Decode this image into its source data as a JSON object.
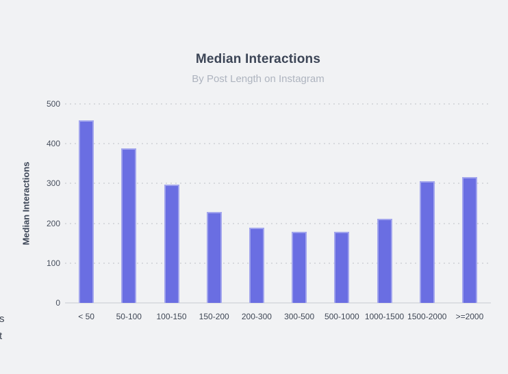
{
  "page": {
    "background_color": "#f1f2f4",
    "clipped_text": [
      "s",
      "t"
    ]
  },
  "chart": {
    "title": "Median Interactions",
    "subtitle": "By Post Length on Instagram",
    "y_axis_label": "Median Interactions"
  },
  "chart_data": {
    "type": "bar",
    "title": "Median Interactions",
    "subtitle": "By Post Length on Instagram",
    "xlabel": "",
    "ylabel": "Median Interactions",
    "categories": [
      "< 50",
      "50-100",
      "100-150",
      "150-200",
      "200-300",
      "300-500",
      "500-1000",
      "1000-1500",
      "1500-2000",
      ">=2000"
    ],
    "values": [
      458,
      388,
      297,
      228,
      189,
      178,
      179,
      211,
      306,
      316
    ],
    "ylim": [
      0,
      500
    ],
    "yticks": [
      0,
      100,
      200,
      300,
      400,
      500
    ],
    "grid": "horizontal-dotted",
    "legend": "none",
    "bar_color": "#6a6ee2"
  },
  "colors": {
    "background": "#f1f2f4",
    "bar": "#6a6ee2",
    "gridline": "#d7d9dd",
    "baseline": "#dcdee2",
    "title_text": "#3c4556",
    "subtitle_text": "#aeb4bf",
    "tick_text": "#474f5d"
  }
}
